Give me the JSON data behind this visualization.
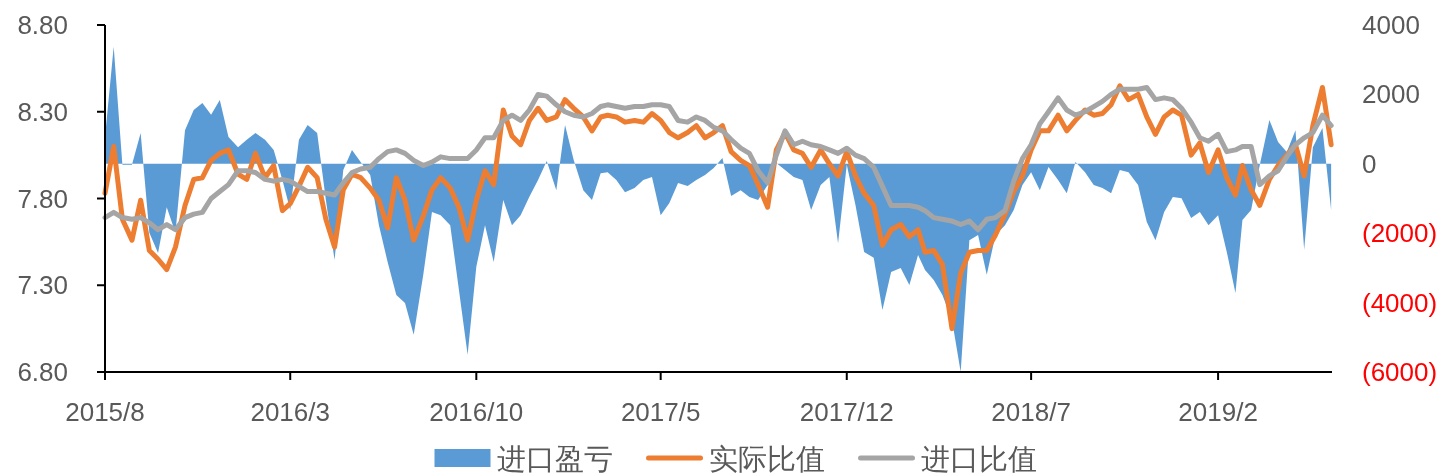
{
  "chart_data": {
    "type": "line",
    "x": [
      "2015-08-01",
      "2015-08-11",
      "2015-08-21",
      "2015-09-01",
      "2015-09-11",
      "2015-09-21",
      "2015-10-01",
      "2015-10-11",
      "2015-10-21",
      "2015-11-01",
      "2015-11-11",
      "2015-11-21",
      "2015-12-01",
      "2015-12-11",
      "2015-12-21",
      "2016-01-01",
      "2016-01-11",
      "2016-01-21",
      "2016-02-01",
      "2016-02-11",
      "2016-02-21",
      "2016-03-01",
      "2016-03-11",
      "2016-03-21",
      "2016-04-01",
      "2016-04-11",
      "2016-04-21",
      "2016-05-01",
      "2016-05-11",
      "2016-05-21",
      "2016-06-01",
      "2016-06-11",
      "2016-06-21",
      "2016-07-01",
      "2016-07-11",
      "2016-07-21",
      "2016-08-01",
      "2016-08-11",
      "2016-08-21",
      "2016-09-01",
      "2016-09-11",
      "2016-09-21",
      "2016-10-01",
      "2016-10-11",
      "2016-10-21",
      "2016-11-01",
      "2016-11-11",
      "2016-11-21",
      "2016-12-01",
      "2016-12-11",
      "2016-12-21",
      "2017-01-01",
      "2017-01-11",
      "2017-01-21",
      "2017-02-01",
      "2017-02-11",
      "2017-02-21",
      "2017-03-01",
      "2017-03-11",
      "2017-03-21",
      "2017-04-01",
      "2017-04-11",
      "2017-04-21",
      "2017-05-01",
      "2017-05-11",
      "2017-05-21",
      "2017-06-01",
      "2017-06-11",
      "2017-06-21",
      "2017-07-01",
      "2017-07-11",
      "2017-07-21",
      "2017-08-01",
      "2017-08-11",
      "2017-08-21",
      "2017-09-01",
      "2017-09-11",
      "2017-09-21",
      "2017-10-01",
      "2017-10-11",
      "2017-10-21",
      "2017-11-01",
      "2017-11-11",
      "2017-11-21",
      "2017-12-01",
      "2017-12-11",
      "2017-12-21",
      "2018-01-01",
      "2018-01-11",
      "2018-01-21",
      "2018-02-01",
      "2018-02-11",
      "2018-02-21",
      "2018-03-01",
      "2018-03-11",
      "2018-03-21",
      "2018-04-01",
      "2018-04-11",
      "2018-04-21",
      "2018-05-01",
      "2018-05-11",
      "2018-05-21",
      "2018-06-01",
      "2018-06-11",
      "2018-06-21",
      "2018-07-01",
      "2018-07-11",
      "2018-07-21",
      "2018-08-01",
      "2018-08-11",
      "2018-08-21",
      "2018-09-01",
      "2018-09-11",
      "2018-09-21",
      "2018-10-01",
      "2018-10-11",
      "2018-10-21",
      "2018-11-01",
      "2018-11-11",
      "2018-11-21",
      "2018-12-01",
      "2018-12-11",
      "2018-12-21",
      "2019-01-01",
      "2019-01-11",
      "2019-01-21",
      "2019-02-01",
      "2019-02-11",
      "2019-02-21",
      "2019-03-01",
      "2019-03-11",
      "2019-03-21",
      "2019-04-01",
      "2019-04-11",
      "2019-04-21",
      "2019-05-01",
      "2019-05-11",
      "2019-05-21",
      "2019-06-01",
      "2019-06-11"
    ],
    "xlim": [
      "2015-08-01",
      "2019-06-12"
    ],
    "xticks": [
      {
        "value": "2015-08-01",
        "label": "2015/8"
      },
      {
        "value": "2016-03-01",
        "label": "2016/3"
      },
      {
        "value": "2016-10-01",
        "label": "2016/10"
      },
      {
        "value": "2017-05-01",
        "label": "2017/5"
      },
      {
        "value": "2017-12-01",
        "label": "2017/12"
      },
      {
        "value": "2018-07-01",
        "label": "2018/7"
      },
      {
        "value": "2019-02-01",
        "label": "2019/2"
      }
    ],
    "ylim": [
      6.8,
      8.8
    ],
    "yticks": [
      {
        "value": 6.8,
        "label": "6.80"
      },
      {
        "value": 7.3,
        "label": "7.30"
      },
      {
        "value": 7.8,
        "label": "7.80"
      },
      {
        "value": 8.3,
        "label": "8.30"
      },
      {
        "value": 8.8,
        "label": "8.80"
      }
    ],
    "y2lim": [
      -6000,
      4000
    ],
    "y2ticks": [
      {
        "value": -6000,
        "label": "(6000)"
      },
      {
        "value": -4000,
        "label": "(4000)"
      },
      {
        "value": -2000,
        "label": "(2000)"
      },
      0,
      2000,
      4000
    ],
    "series": [
      {
        "name": "进口盈亏",
        "type": "area",
        "axis": "y2",
        "color": "#5b9bd5",
        "values": [
          770,
          3370,
          -30,
          -30,
          890,
          -1990,
          -2570,
          -1250,
          -1990,
          970,
          1550,
          1750,
          1410,
          1840,
          770,
          480,
          690,
          890,
          690,
          400,
          -470,
          -1330,
          690,
          1120,
          890,
          -1040,
          -2770,
          -180,
          400,
          50,
          -320,
          -1770,
          -2830,
          -3780,
          -4010,
          -4930,
          -3200,
          -1390,
          -1480,
          -1770,
          -3640,
          -5500,
          -2970,
          -1770,
          -2830,
          -1040,
          -1770,
          -1480,
          -950,
          -470,
          80,
          -760,
          1120,
          110,
          -760,
          -1040,
          -270,
          -240,
          -470,
          -820,
          -700,
          -470,
          -380,
          -1480,
          -1130,
          -550,
          -640,
          -470,
          -320,
          -120,
          170,
          -930,
          -760,
          -960,
          -1040,
          -610,
          20,
          -180,
          -380,
          -470,
          -1330,
          -610,
          -380,
          -2290,
          -30,
          -1190,
          -2540,
          -2710,
          -4210,
          -3120,
          -3000,
          -3490,
          -2630,
          -3060,
          -3350,
          -3780,
          -4500,
          -6000,
          -2200,
          -2050,
          -3200,
          -2050,
          -1770,
          -1330,
          -610,
          -240,
          -760,
          -90,
          -470,
          -850,
          50,
          -240,
          -610,
          -700,
          -850,
          -180,
          -240,
          -610,
          -1680,
          -2200,
          -1390,
          -960,
          -990,
          -1560,
          -1390,
          -1770,
          -1480,
          -2540,
          -3720,
          -1620,
          -1330,
          -30,
          1260,
          630,
          340,
          970,
          -2480,
          480,
          1030,
          -1330
        ]
      },
      {
        "name": "实际比值",
        "color": "#ed7d31",
        "values": [
          7.83,
          8.1,
          7.68,
          7.56,
          7.79,
          7.5,
          7.45,
          7.39,
          7.52,
          7.76,
          7.91,
          7.92,
          8.02,
          8.06,
          8.08,
          7.94,
          7.91,
          8.06,
          7.92,
          7.99,
          7.73,
          7.77,
          7.87,
          7.98,
          7.92,
          7.68,
          7.52,
          7.85,
          7.94,
          7.92,
          7.86,
          7.79,
          7.63,
          7.92,
          7.79,
          7.56,
          7.7,
          7.85,
          7.92,
          7.86,
          7.75,
          7.56,
          7.79,
          7.96,
          7.88,
          8.31,
          8.16,
          8.11,
          8.25,
          8.32,
          8.25,
          8.27,
          8.37,
          8.32,
          8.27,
          8.19,
          8.27,
          8.28,
          8.27,
          8.24,
          8.25,
          8.24,
          8.29,
          8.25,
          8.18,
          8.15,
          8.18,
          8.22,
          8.15,
          8.18,
          8.22,
          8.07,
          8.02,
          7.99,
          7.88,
          7.75,
          8.08,
          8.18,
          8.08,
          8.06,
          7.98,
          8.08,
          8.0,
          7.93,
          8.07,
          7.93,
          7.83,
          7.76,
          7.53,
          7.62,
          7.65,
          7.58,
          7.62,
          7.49,
          7.5,
          7.42,
          7.05,
          7.37,
          7.49,
          7.5,
          7.5,
          7.59,
          7.71,
          7.84,
          7.93,
          8.08,
          8.19,
          8.19,
          8.28,
          8.19,
          8.25,
          8.31,
          8.28,
          8.29,
          8.34,
          8.45,
          8.37,
          8.4,
          8.27,
          8.17,
          8.27,
          8.31,
          8.28,
          8.05,
          8.12,
          7.95,
          8.08,
          7.92,
          7.82,
          7.99,
          7.85,
          7.76,
          7.91,
          7.99,
          8.05,
          8.11,
          7.93,
          8.22,
          8.44,
          8.11
        ]
      },
      {
        "name": "进口比值",
        "color": "#a5a5a5",
        "values": [
          7.69,
          7.72,
          7.69,
          7.68,
          7.69,
          7.66,
          7.62,
          7.65,
          7.62,
          7.69,
          7.71,
          7.72,
          7.8,
          7.84,
          7.88,
          7.96,
          7.96,
          7.95,
          7.91,
          7.9,
          7.91,
          7.9,
          7.87,
          7.84,
          7.84,
          7.83,
          7.82,
          7.89,
          7.95,
          7.97,
          7.98,
          8.03,
          8.07,
          8.08,
          8.06,
          8.02,
          7.99,
          8.01,
          8.04,
          8.03,
          8.03,
          8.03,
          8.08,
          8.15,
          8.15,
          8.25,
          8.28,
          8.25,
          8.31,
          8.4,
          8.39,
          8.34,
          8.3,
          8.28,
          8.27,
          8.29,
          8.33,
          8.34,
          8.33,
          8.32,
          8.33,
          8.33,
          8.34,
          8.34,
          8.33,
          8.25,
          8.24,
          8.27,
          8.25,
          8.21,
          8.19,
          8.14,
          8.09,
          8.06,
          7.96,
          7.89,
          8.05,
          8.19,
          8.11,
          8.13,
          8.11,
          8.1,
          8.08,
          8.06,
          8.09,
          8.05,
          8.03,
          7.98,
          7.87,
          7.76,
          7.76,
          7.76,
          7.75,
          7.73,
          7.69,
          7.68,
          7.67,
          7.65,
          7.67,
          7.62,
          7.68,
          7.69,
          7.73,
          7.9,
          8.03,
          8.11,
          8.23,
          8.3,
          8.38,
          8.31,
          8.28,
          8.3,
          8.33,
          8.36,
          8.4,
          8.43,
          8.43,
          8.43,
          8.44,
          8.37,
          8.38,
          8.37,
          8.32,
          8.24,
          8.15,
          8.13,
          8.17,
          8.07,
          8.08,
          8.1,
          8.1,
          7.88,
          7.93,
          7.96,
          8.04,
          8.11,
          8.15,
          8.18,
          8.28,
          8.22
        ]
      }
    ],
    "legend": "bottom"
  }
}
